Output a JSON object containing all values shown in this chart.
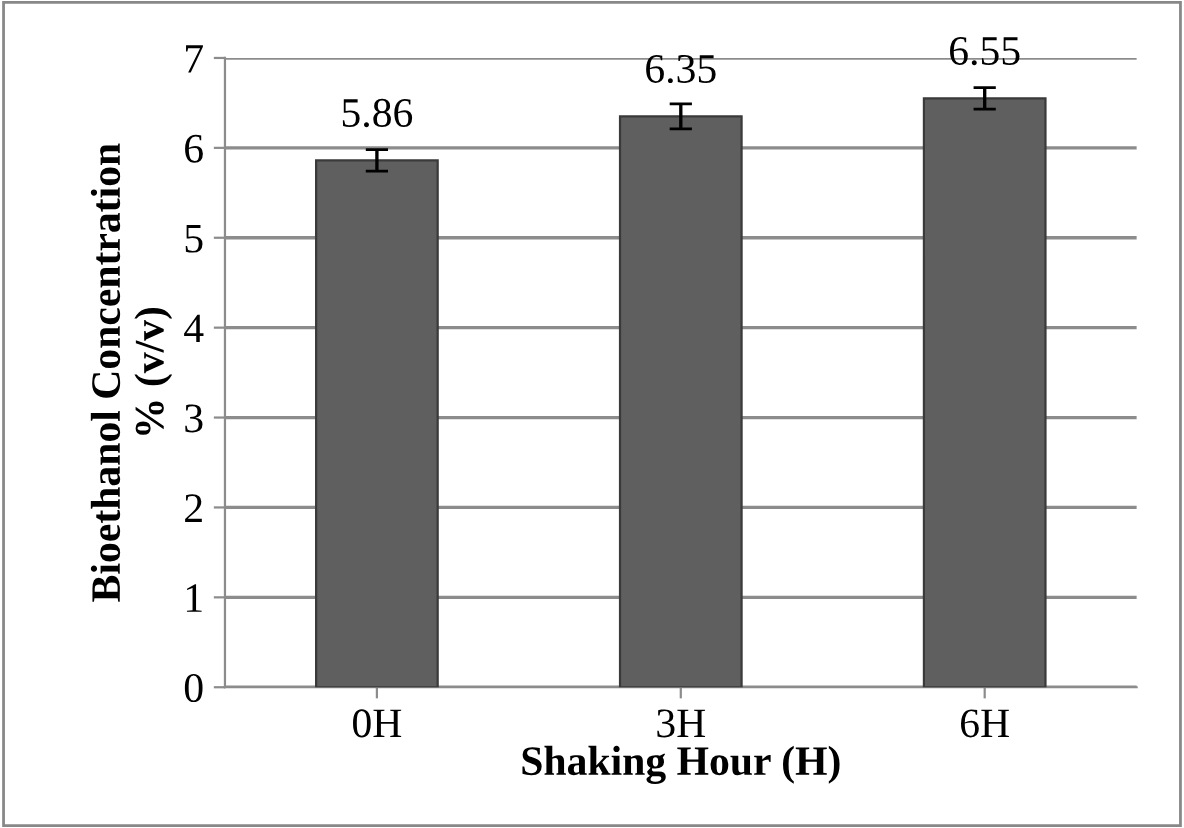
{
  "chart_data": {
    "type": "bar",
    "xlabel": "Shaking Hour (H)",
    "ylabel": "Bioethanol Concentration\n% (v/v)",
    "categories": [
      "0H",
      "3H",
      "6H"
    ],
    "values": [
      5.86,
      6.35,
      6.55
    ],
    "errors": [
      0.12,
      0.14,
      0.12
    ],
    "color": "#5f5f5f",
    "ylim": [
      0,
      7
    ],
    "yticks": [
      0,
      1,
      2,
      3,
      4,
      5,
      6,
      7
    ],
    "grid": "y",
    "data_labels": true
  }
}
